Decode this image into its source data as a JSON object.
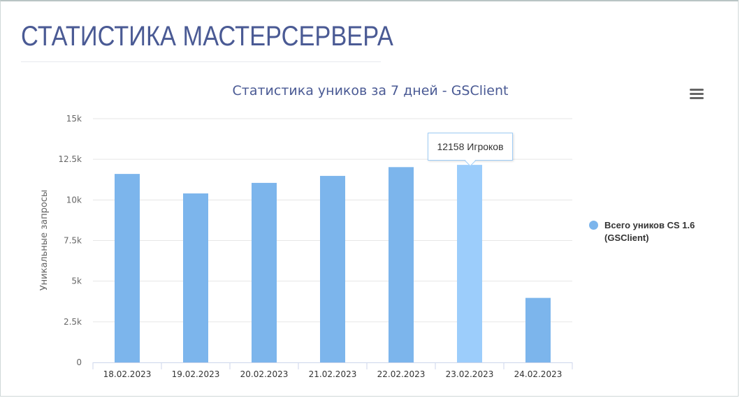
{
  "page": {
    "title": "СТАТИСТИКА МАСТЕРСЕРВЕРА"
  },
  "colors": {
    "title": "#4a5a94",
    "bar": "#7cb5ec",
    "bar_hover": "#9ccdfb",
    "grid": "#e6e6e6",
    "axis_text": "#666666"
  },
  "menu": {
    "icon": "hamburger-menu-icon"
  },
  "tooltip": {
    "text": "12158 Игроков"
  },
  "chart_data": {
    "type": "bar",
    "title": "Статистика уников за 7 дней - GSClient",
    "xlabel": "",
    "ylabel": "Уникальные запросы",
    "categories": [
      "18.02.2023",
      "19.02.2023",
      "20.02.2023",
      "21.02.2023",
      "22.02.2023",
      "23.02.2023",
      "24.02.2023"
    ],
    "series": [
      {
        "name": "Всего уников CS 1.6 (GSClient)",
        "values": [
          11600,
          10400,
          11050,
          11480,
          12020,
          12158,
          3970
        ]
      }
    ],
    "ylim": [
      0,
      15000
    ],
    "yticks": [
      0,
      2500,
      5000,
      7500,
      10000,
      12500,
      15000
    ],
    "ytick_labels": [
      "0",
      "2.5k",
      "5k",
      "7.5k",
      "10k",
      "12.5k",
      "15k"
    ],
    "grid": true,
    "legend_position": "right",
    "highlighted_category": "23.02.2023"
  }
}
